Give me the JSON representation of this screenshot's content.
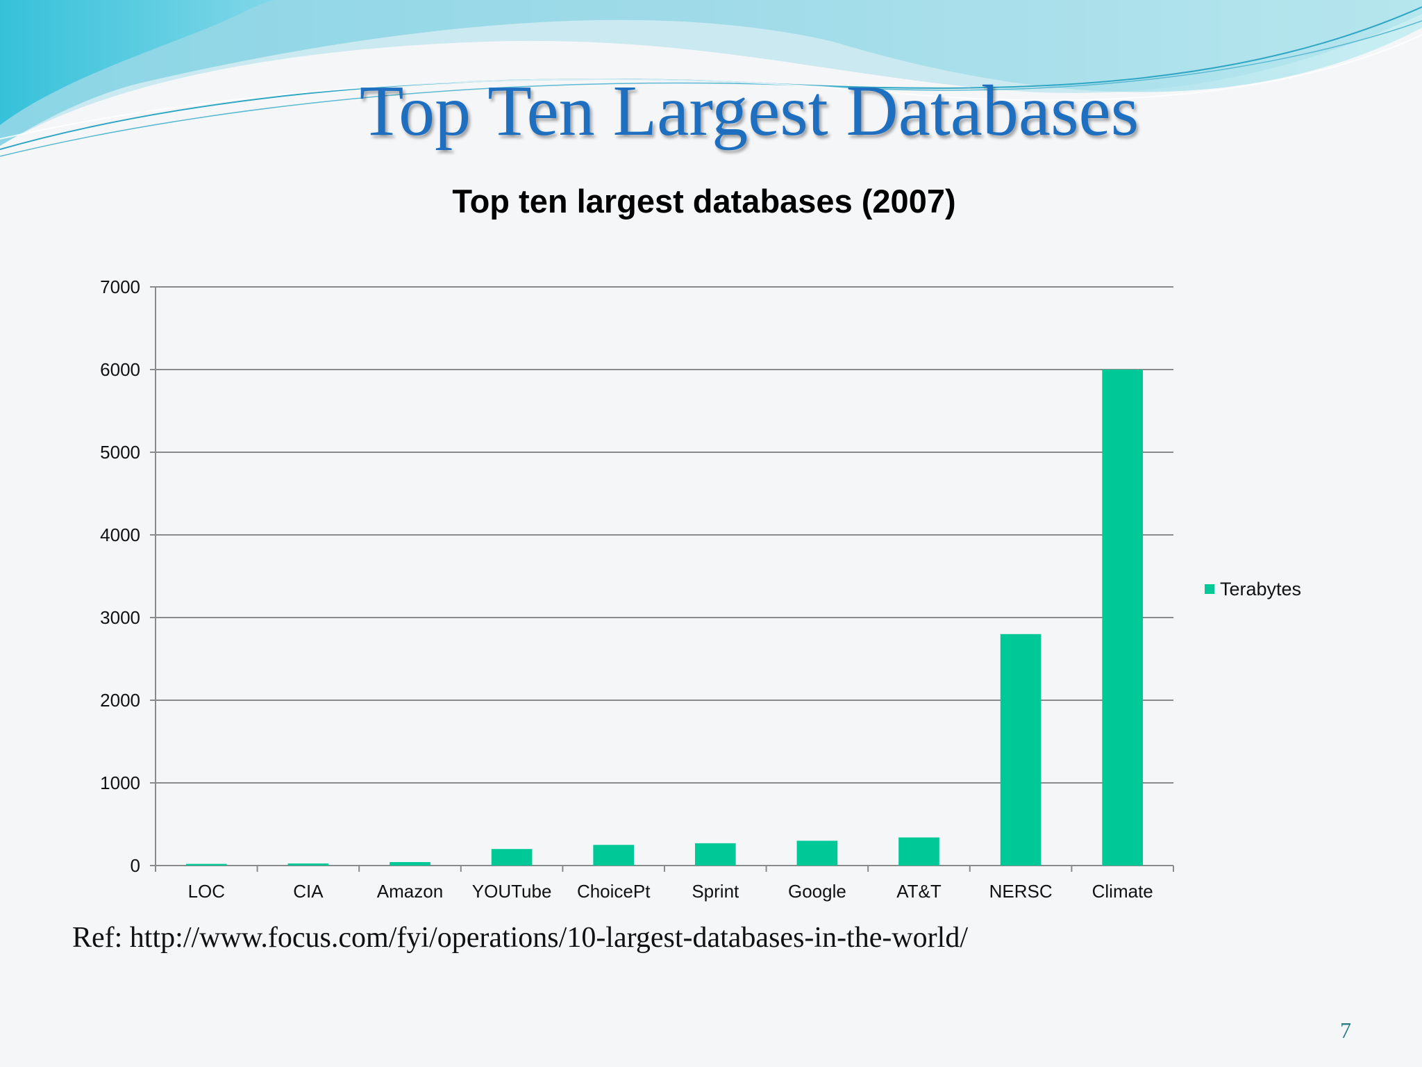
{
  "slide": {
    "title": "Top Ten Largest Databases",
    "reference": "Ref: http://www.focus.com/fyi/operations/10-largest-databases-in-the-world/",
    "page_number": "7"
  },
  "colors": {
    "bar": "#00c896",
    "title": "#1e6fbf",
    "wave_light": "#b8e6ee",
    "wave_mid": "#7fd0e2",
    "wave_dark": "#4fb6d6"
  },
  "chart_data": {
    "type": "bar",
    "title": "Top ten largest databases (2007)",
    "categories": [
      "LOC",
      "CIA",
      "Amazon",
      "YOUTube",
      "ChoicePt",
      "Sprint",
      "Google",
      "AT&T",
      "NERSC",
      "Climate"
    ],
    "series": [
      {
        "name": "Terabytes",
        "values": [
          20,
          25,
          42,
          200,
          250,
          270,
          300,
          340,
          2800,
          6000
        ]
      }
    ],
    "yticks": [
      0,
      1000,
      2000,
      3000,
      4000,
      5000,
      6000,
      7000
    ],
    "ylim": [
      0,
      7000
    ],
    "grid": true,
    "legend": "right"
  }
}
